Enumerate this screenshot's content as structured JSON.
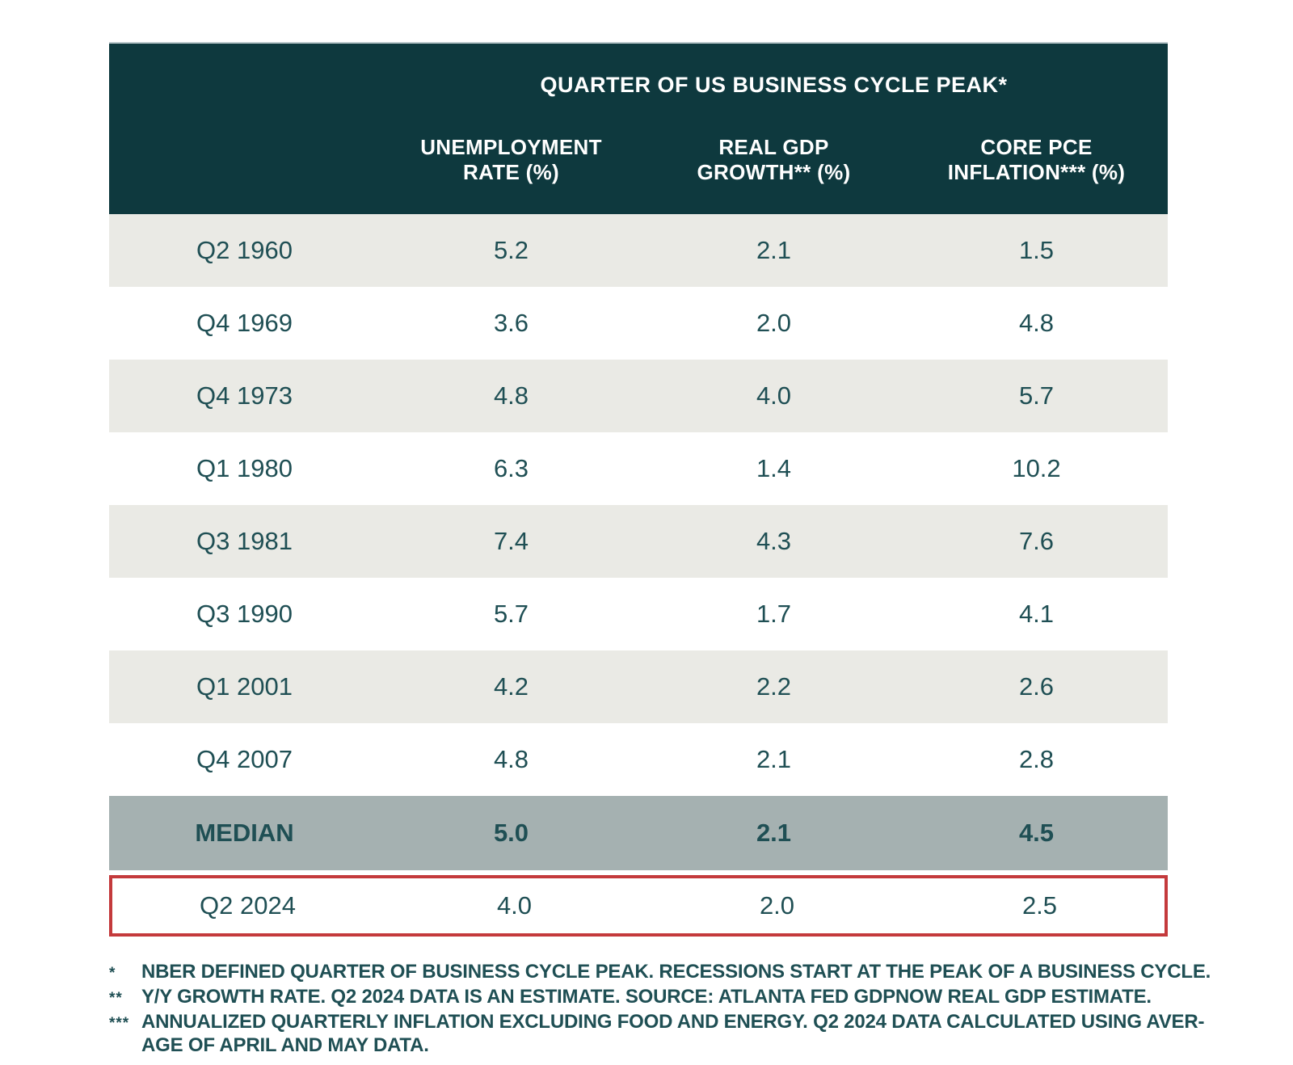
{
  "table": {
    "title": "QUARTER OF US BUSINESS CYCLE PEAK*",
    "columns": [
      {
        "line1": "UNEMPLOYMENT",
        "line2": "RATE (%)"
      },
      {
        "line1": "REAL GDP",
        "line2": "GROWTH** (%)"
      },
      {
        "line1": "CORE PCE",
        "line2": "INFLATION*** (%)"
      }
    ],
    "rows": [
      {
        "label": "Q2 1960",
        "unemployment": "5.2",
        "gdp": "2.1",
        "inflation": "1.5"
      },
      {
        "label": "Q4 1969",
        "unemployment": "3.6",
        "gdp": "2.0",
        "inflation": "4.8"
      },
      {
        "label": "Q4 1973",
        "unemployment": "4.8",
        "gdp": "4.0",
        "inflation": "5.7"
      },
      {
        "label": "Q1 1980",
        "unemployment": "6.3",
        "gdp": "1.4",
        "inflation": "10.2"
      },
      {
        "label": "Q3 1981",
        "unemployment": "7.4",
        "gdp": "4.3",
        "inflation": "7.6"
      },
      {
        "label": "Q3 1990",
        "unemployment": "5.7",
        "gdp": "1.7",
        "inflation": "4.1"
      },
      {
        "label": "Q1 2001",
        "unemployment": "4.2",
        "gdp": "2.2",
        "inflation": "2.6"
      },
      {
        "label": "Q4 2007",
        "unemployment": "4.8",
        "gdp": "2.1",
        "inflation": "2.8"
      },
      {
        "label": "MEDIAN",
        "unemployment": "5.0",
        "gdp": "2.1",
        "inflation": "4.5"
      },
      {
        "label": "Q2 2024",
        "unemployment": "4.0",
        "gdp": "2.0",
        "inflation": "2.5"
      }
    ]
  },
  "footnotes": [
    {
      "marker": "*",
      "lines": [
        "NBER DEFINED QUARTER OF BUSINESS CYCLE PEAK. RECESSIONS START AT THE PEAK OF A BUSINESS CYCLE."
      ]
    },
    {
      "marker": "**",
      "lines": [
        "Y/Y GROWTH RATE. Q2 2024 DATA IS AN ESTIMATE. SOURCE: ATLANTA FED GDPNOW REAL GDP ESTIMATE."
      ]
    },
    {
      "marker": "***",
      "lines": [
        "ANNUALIZED QUARTERLY INFLATION EXCLUDING FOOD AND ENERGY. Q2 2024 DATA CALCULATED USING AVER-",
        "AGE OF APRIL AND MAY DATA."
      ]
    }
  ],
  "colors": {
    "header_bg": "#0e393e",
    "header_text": "#ffffff",
    "body_text": "#1f4f54",
    "row_alt_bg": "#eaeae5",
    "median_row_bg": "#a5b1b1",
    "highlight_border": "#c43a3c"
  },
  "chart_data": {
    "type": "table",
    "title": "QUARTER OF US BUSINESS CYCLE PEAK*",
    "columns": [
      "Quarter",
      "UNEMPLOYMENT RATE (%)",
      "REAL GDP GROWTH** (%)",
      "CORE PCE INFLATION*** (%)"
    ],
    "rows": [
      [
        "Q2 1960",
        5.2,
        2.1,
        1.5
      ],
      [
        "Q4 1969",
        3.6,
        2.0,
        4.8
      ],
      [
        "Q4 1973",
        4.8,
        4.0,
        5.7
      ],
      [
        "Q1 1980",
        6.3,
        1.4,
        10.2
      ],
      [
        "Q3 1981",
        7.4,
        4.3,
        7.6
      ],
      [
        "Q3 1990",
        5.7,
        1.7,
        4.1
      ],
      [
        "Q1 2001",
        4.2,
        2.2,
        2.6
      ],
      [
        "Q4 2007",
        4.8,
        2.1,
        2.8
      ],
      [
        "MEDIAN",
        5.0,
        2.1,
        4.5
      ],
      [
        "Q2 2024",
        4.0,
        2.0,
        2.5
      ]
    ],
    "summary_row": "MEDIAN",
    "highlighted_row": "Q2 2024",
    "layout_hints": "alternating row shading; MEDIAN row bold on gray-blue band; Q2 2024 row outlined in red"
  }
}
